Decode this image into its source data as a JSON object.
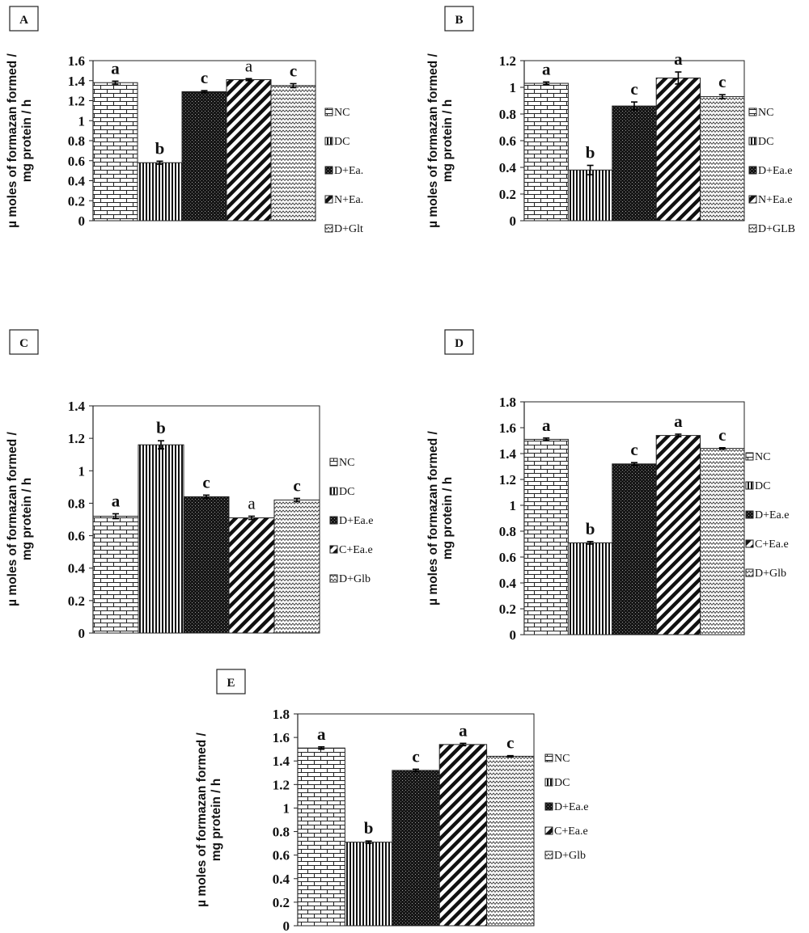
{
  "colors": {
    "ink": "#222222",
    "background": "#ffffff"
  },
  "chart_data": [
    {
      "panel": "A",
      "type": "bar",
      "ylabel_lines": [
        "µ moles of formazan formed /",
        "mg protein / h"
      ],
      "ylim": [
        0,
        1.6
      ],
      "yticks": [
        "0",
        "0.2",
        "0.4",
        "0.6",
        "0.8",
        "1",
        "1.2",
        "1.4",
        "1.6"
      ],
      "categories": [
        "NC",
        "DC",
        "D+Ea.",
        "N+Ea.",
        "D+Glt"
      ],
      "values": [
        1.38,
        0.58,
        1.29,
        1.41,
        1.35
      ],
      "errors": [
        0.015,
        0.015,
        0.01,
        0.01,
        0.02
      ],
      "labels": [
        "a",
        "b",
        "c",
        "a",
        "c"
      ],
      "label_bold": [
        true,
        true,
        true,
        false,
        true
      ],
      "legend": [
        "NC",
        "DC",
        "D+Ea.",
        "N+Ea.",
        "D+Glt"
      ]
    },
    {
      "panel": "B",
      "type": "bar",
      "ylabel_lines": [
        "µ moles of formazan formed /",
        "mg protein / h"
      ],
      "ylim": [
        0,
        1.2
      ],
      "yticks": [
        "0",
        "0.2",
        "0.4",
        "0.6",
        "0.8",
        "1",
        "1.2"
      ],
      "categories": [
        "NC",
        "DC",
        "D+Ea.e",
        "N+Ea.e",
        "D+GLB"
      ],
      "values": [
        1.03,
        0.38,
        0.86,
        1.07,
        0.93
      ],
      "errors": [
        0.01,
        0.035,
        0.03,
        0.045,
        0.015
      ],
      "labels": [
        "a",
        "b",
        "c",
        "a",
        "c"
      ],
      "label_bold": [
        true,
        true,
        true,
        true,
        true
      ],
      "legend": [
        "NC",
        "DC",
        "D+Ea.e",
        "N+Ea.e",
        "D+GLB"
      ]
    },
    {
      "panel": "C",
      "type": "bar",
      "ylabel_lines": [
        "µ moles of formazan formed /",
        "mg protein / h"
      ],
      "ylim": [
        0,
        1.4
      ],
      "yticks": [
        "0",
        "0.2",
        "0.4",
        "0.6",
        "0.8",
        "1",
        "1.2",
        "1.4"
      ],
      "categories": [
        "NC",
        "DC",
        "D+Ea.e",
        "C+Ea.e",
        "D+Glb"
      ],
      "values": [
        0.72,
        1.16,
        0.84,
        0.71,
        0.82
      ],
      "errors": [
        0.015,
        0.025,
        0.01,
        0.01,
        0.01
      ],
      "labels": [
        "a",
        "b",
        "c",
        "a",
        "c"
      ],
      "label_bold": [
        true,
        true,
        true,
        false,
        true
      ],
      "legend": [
        "NC",
        "DC",
        "D+Ea.e",
        "C+Ea.e",
        "D+Glb"
      ]
    },
    {
      "panel": "D",
      "type": "bar",
      "ylabel_lines": [
        "µ moles of formazan formed /",
        "mg protein / h"
      ],
      "ylim": [
        0,
        1.8
      ],
      "yticks": [
        "0",
        "0.2",
        "0.4",
        "0.6",
        "0.8",
        "1",
        "1.2",
        "1.4",
        "1.6",
        "1.8"
      ],
      "categories": [
        "NC",
        "DC",
        "D+Ea.e",
        "C+Ea.e",
        "D+Glb"
      ],
      "values": [
        1.51,
        0.71,
        1.32,
        1.54,
        1.44
      ],
      "errors": [
        0.01,
        0.01,
        0.01,
        0.01,
        0.005
      ],
      "labels": [
        "a",
        "b",
        "c",
        "a",
        "c"
      ],
      "label_bold": [
        true,
        true,
        true,
        true,
        true
      ],
      "legend": [
        "NC",
        "DC",
        "D+Ea.e",
        "C+Ea.e",
        "D+Glb"
      ]
    },
    {
      "panel": "E",
      "type": "bar",
      "ylabel_lines": [
        "µ moles of formazan formed /",
        "mg protein / h"
      ],
      "ylim": [
        0,
        1.8
      ],
      "yticks": [
        "0",
        "0.2",
        "0.4",
        "0.6",
        "0.8",
        "1",
        "1.2",
        "1.4",
        "1.6",
        "1.8"
      ],
      "categories": [
        "NC",
        "DC",
        "D+Ea.e",
        "C+Ea.e",
        "D+Glb"
      ],
      "values": [
        1.51,
        0.71,
        1.32,
        1.54,
        1.44
      ],
      "errors": [
        0.01,
        0.01,
        0.01,
        0.01,
        0.005
      ],
      "labels": [
        "a",
        "b",
        "c",
        "a",
        "c"
      ],
      "label_bold": [
        true,
        true,
        true,
        true,
        true
      ],
      "legend": [
        "NC",
        "DC",
        "D+Ea.e",
        "C+Ea.e",
        "D+Glb"
      ]
    }
  ]
}
